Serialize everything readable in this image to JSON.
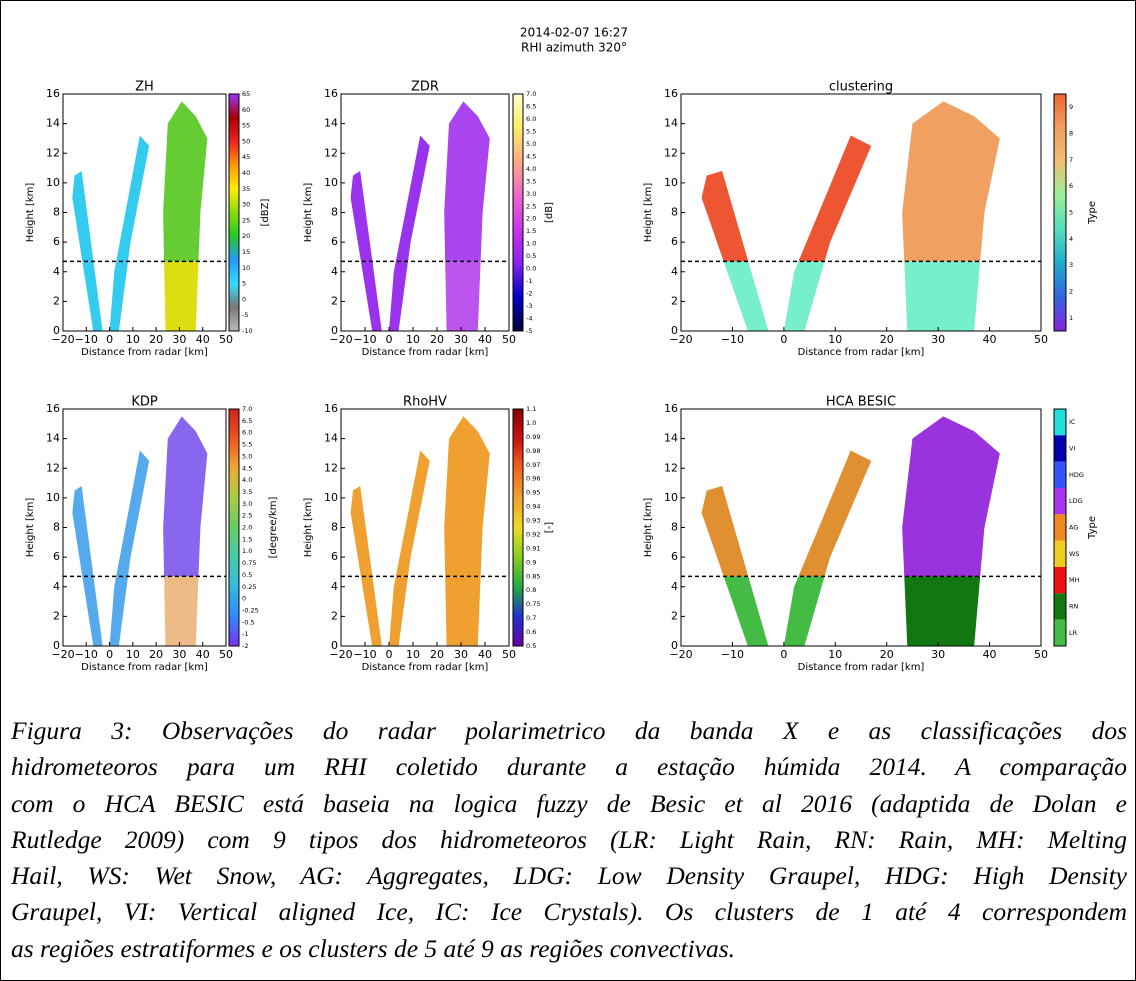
{
  "header": {
    "title": "2014-02-07 16:27",
    "subtitle": "RHI azimuth 320°"
  },
  "panels": [
    {
      "title": "ZH",
      "y_label": "Height [km]",
      "x_label": "Distance from radar [km]",
      "yticks": [
        "0",
        "2",
        "4",
        "6",
        "8",
        "10",
        "12",
        "14",
        "16"
      ],
      "xticks": [
        "−20",
        "−10",
        "0",
        "10",
        "20",
        "30",
        "40",
        "50"
      ],
      "colorbar_labels": [
        "65",
        "60",
        "55",
        "50",
        "45",
        "40",
        "35",
        "30",
        "25",
        "20",
        "15",
        "10",
        "5",
        "0",
        "-5",
        "-10"
      ],
      "colorbar_label": "[dBZ]"
    },
    {
      "title": "ZDR",
      "y_label": "Height [km]",
      "x_label": "Distance from radar [km]",
      "yticks": [
        "0",
        "2",
        "4",
        "6",
        "8",
        "10",
        "12",
        "14",
        "16"
      ],
      "xticks": [
        "−20",
        "−10",
        "0",
        "10",
        "20",
        "30",
        "40",
        "50"
      ],
      "colorbar_labels": [
        "7.0",
        "6.5",
        "6.0",
        "5.5",
        "5.0",
        "4.5",
        "4.0",
        "3.5",
        "3.0",
        "2.5",
        "2.0",
        "1.5",
        "1.0",
        "0.5",
        "0.0",
        "-1",
        "-2",
        "-3",
        "-4",
        "-5"
      ],
      "colorbar_label": "[dB]"
    },
    {
      "title": "clustering",
      "y_label": "Height [km]",
      "x_label": "Distance from radar [km]",
      "yticks": [
        "0",
        "2",
        "4",
        "6",
        "8",
        "10",
        "12",
        "14",
        "16"
      ],
      "xticks": [
        "−20",
        "−10",
        "0",
        "10",
        "20",
        "30",
        "40",
        "50"
      ],
      "colorbar_labels": [
        "9",
        "8",
        "7",
        "6",
        "5",
        "4",
        "3",
        "2",
        "1"
      ],
      "colorbar_label": "Type"
    },
    {
      "title": "KDP",
      "y_label": "Height [km]",
      "x_label": "Distance from radar [km]",
      "yticks": [
        "0",
        "2",
        "4",
        "6",
        "8",
        "10",
        "12",
        "14",
        "16"
      ],
      "xticks": [
        "−20",
        "−10",
        "0",
        "10",
        "20",
        "30",
        "40",
        "50"
      ],
      "colorbar_labels": [
        "7.0",
        "6.5",
        "6.0",
        "5.5",
        "5.0",
        "4.5",
        "4.0",
        "3.5",
        "3.0",
        "2.5",
        "2.0",
        "1.5",
        "1.0",
        "0.75",
        "0.5",
        "0.25",
        "0",
        "-0.25",
        "-0.5",
        "-1",
        "-2"
      ],
      "colorbar_label": "[degree/km]"
    },
    {
      "title": "RhoHV",
      "y_label": "Height [km]",
      "x_label": "Distance from radar [km]",
      "yticks": [
        "0",
        "2",
        "4",
        "6",
        "8",
        "10",
        "12",
        "14",
        "16"
      ],
      "xticks": [
        "−20",
        "−10",
        "0",
        "10",
        "20",
        "30",
        "40",
        "50"
      ],
      "colorbar_labels": [
        "1.1",
        "1.0",
        "0.99",
        "0.98",
        "0.97",
        "0.96",
        "0.95",
        "0.94",
        "0.93",
        "0.92",
        "0.91",
        "0.9",
        "0.85",
        "0.8",
        "0.75",
        "0.7",
        "0.6",
        "0.5"
      ],
      "colorbar_label": "[-]"
    },
    {
      "title": "HCA BESIC",
      "y_label": "Height [km]",
      "x_label": "Distance from radar [km]",
      "yticks": [
        "0",
        "2",
        "4",
        "6",
        "8",
        "10",
        "12",
        "14",
        "16"
      ],
      "xticks": [
        "−20",
        "−10",
        "0",
        "10",
        "20",
        "30",
        "40",
        "50"
      ],
      "colorbar_labels": [
        "IC",
        "VI",
        "HDG",
        "LDG",
        "AG",
        "WS",
        "MH",
        "RN",
        "LR"
      ],
      "colorbar_label": "Type"
    }
  ],
  "caption": {
    "lines": [
      "Figura 3: Observações do radar polarimetrico da banda X e as classificações dos",
      "hidrometeoros para um RHI coletido durante a estação húmida 2014. A comparação",
      "com o HCA BESIC está baseia na logica fuzzy de Besic et al 2016 (adaptida de Dolan e",
      "Rutledge 2009) com 9 tipos dos hidrometeoros (LR: Light Rain, RN: Rain, MH: Melting",
      "Hail, WS: Wet Snow, AG: Aggregates, LDG: Low Density Graupel, HDG: High Density",
      "Graupel, VI: Vertical aligned Ice, IC: Ice Crystals). Os clusters de 1 até 4 correspondem",
      "as regiões estratiformes e os clusters de 5 até 9 as regiões convectivas."
    ]
  }
}
